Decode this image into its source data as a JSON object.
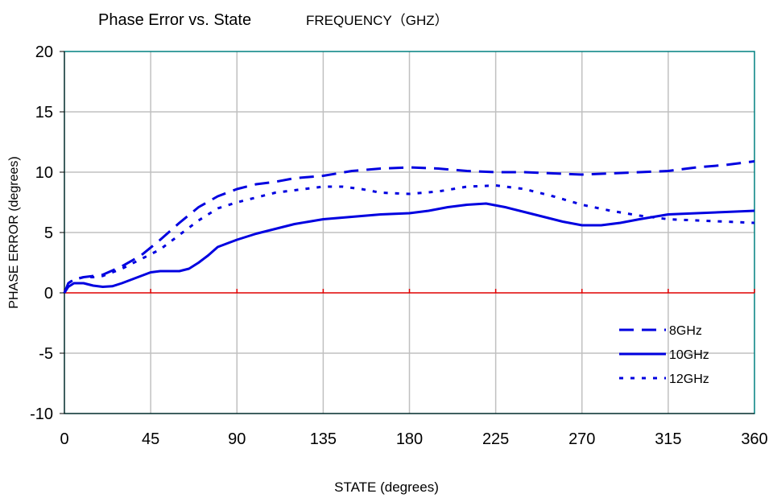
{
  "chart_data": {
    "type": "line",
    "title": "Phase Error vs. State",
    "subtitle": "FREQUENCY（GHZ）",
    "xlabel": "STATE (degrees)",
    "ylabel": "PHASE ERROR (degrees)",
    "xlim": [
      0,
      360
    ],
    "ylim": [
      -10,
      20
    ],
    "xticks": [
      0,
      45,
      90,
      135,
      180,
      225,
      270,
      315,
      360
    ],
    "yticks": [
      -10,
      -5,
      0,
      5,
      10,
      15,
      20
    ],
    "grid": true,
    "legend_position": "bottom-right",
    "zero_line_color": "#e00000",
    "grid_color": "#c0c0c0",
    "frame_color": "#008080",
    "series_color": "#0000e0",
    "series": [
      {
        "name": "8GHz",
        "style": "dashed",
        "points": [
          [
            0,
            0
          ],
          [
            2,
            0.8
          ],
          [
            5,
            1.1
          ],
          [
            10,
            1.3
          ],
          [
            20,
            1.5
          ],
          [
            30,
            2.2
          ],
          [
            40,
            3.1
          ],
          [
            50,
            4.4
          ],
          [
            60,
            5.8
          ],
          [
            70,
            7.1
          ],
          [
            80,
            8
          ],
          [
            90,
            8.6
          ],
          [
            100,
            9
          ],
          [
            110,
            9.2
          ],
          [
            120,
            9.5
          ],
          [
            135,
            9.7
          ],
          [
            150,
            10.1
          ],
          [
            165,
            10.3
          ],
          [
            180,
            10.4
          ],
          [
            195,
            10.3
          ],
          [
            210,
            10.1
          ],
          [
            225,
            10
          ],
          [
            240,
            10
          ],
          [
            255,
            9.9
          ],
          [
            270,
            9.8
          ],
          [
            285,
            9.9
          ],
          [
            300,
            10
          ],
          [
            315,
            10.1
          ],
          [
            330,
            10.4
          ],
          [
            345,
            10.6
          ],
          [
            360,
            10.9
          ]
        ]
      },
      {
        "name": "10GHz",
        "style": "solid",
        "points": [
          [
            0,
            0
          ],
          [
            2,
            0.5
          ],
          [
            5,
            0.8
          ],
          [
            10,
            0.8
          ],
          [
            15,
            0.6
          ],
          [
            20,
            0.5
          ],
          [
            25,
            0.55
          ],
          [
            30,
            0.8
          ],
          [
            35,
            1.1
          ],
          [
            40,
            1.4
          ],
          [
            45,
            1.7
          ],
          [
            50,
            1.8
          ],
          [
            55,
            1.8
          ],
          [
            60,
            1.8
          ],
          [
            65,
            2
          ],
          [
            70,
            2.5
          ],
          [
            75,
            3.1
          ],
          [
            80,
            3.8
          ],
          [
            85,
            4.1
          ],
          [
            90,
            4.4
          ],
          [
            100,
            4.9
          ],
          [
            110,
            5.3
          ],
          [
            120,
            5.7
          ],
          [
            135,
            6.1
          ],
          [
            150,
            6.3
          ],
          [
            165,
            6.5
          ],
          [
            180,
            6.6
          ],
          [
            190,
            6.8
          ],
          [
            200,
            7.1
          ],
          [
            210,
            7.3
          ],
          [
            220,
            7.4
          ],
          [
            230,
            7.1
          ],
          [
            240,
            6.7
          ],
          [
            250,
            6.3
          ],
          [
            260,
            5.9
          ],
          [
            270,
            5.6
          ],
          [
            280,
            5.6
          ],
          [
            290,
            5.8
          ],
          [
            300,
            6.1
          ],
          [
            315,
            6.5
          ],
          [
            330,
            6.6
          ],
          [
            345,
            6.7
          ],
          [
            360,
            6.8
          ]
        ]
      },
      {
        "name": "12GHz",
        "style": "dotted",
        "points": [
          [
            0,
            0
          ],
          [
            2,
            0.8
          ],
          [
            5,
            1.1
          ],
          [
            10,
            1.3
          ],
          [
            15,
            1.3
          ],
          [
            20,
            1.4
          ],
          [
            30,
            2
          ],
          [
            40,
            2.8
          ],
          [
            50,
            3.6
          ],
          [
            60,
            4.8
          ],
          [
            70,
            6
          ],
          [
            80,
            7
          ],
          [
            90,
            7.5
          ],
          [
            100,
            7.9
          ],
          [
            110,
            8.3
          ],
          [
            120,
            8.5
          ],
          [
            135,
            8.8
          ],
          [
            145,
            8.8
          ],
          [
            155,
            8.6
          ],
          [
            165,
            8.3
          ],
          [
            180,
            8.2
          ],
          [
            195,
            8.4
          ],
          [
            210,
            8.8
          ],
          [
            225,
            8.9
          ],
          [
            240,
            8.6
          ],
          [
            255,
            8
          ],
          [
            270,
            7.3
          ],
          [
            285,
            6.8
          ],
          [
            300,
            6.4
          ],
          [
            315,
            6.1
          ],
          [
            330,
            6
          ],
          [
            345,
            5.9
          ],
          [
            360,
            5.8
          ]
        ]
      }
    ]
  }
}
